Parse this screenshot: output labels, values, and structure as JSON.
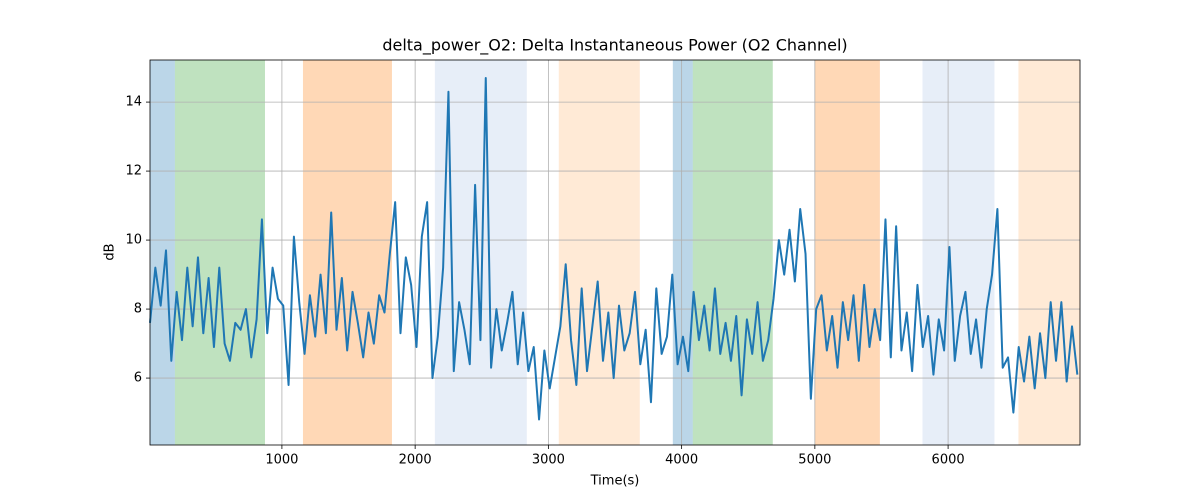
{
  "chart_data": {
    "type": "line",
    "title": "delta_power_O2: Delta Instantaneous Power (O2 Channel)",
    "x_label": "Time(s)",
    "y_label": "dB",
    "x": [
      10,
      50,
      90,
      130,
      170,
      210,
      250,
      290,
      330,
      370,
      410,
      450,
      490,
      530,
      570,
      610,
      650,
      690,
      730,
      770,
      810,
      850,
      890,
      930,
      970,
      1010,
      1050,
      1090,
      1130,
      1170,
      1210,
      1250,
      1290,
      1330,
      1370,
      1410,
      1450,
      1490,
      1530,
      1570,
      1610,
      1650,
      1690,
      1730,
      1770,
      1810,
      1850,
      1890,
      1930,
      1970,
      2010,
      2050,
      2090,
      2130,
      2170,
      2210,
      2250,
      2290,
      2330,
      2370,
      2410,
      2450,
      2490,
      2530,
      2570,
      2610,
      2650,
      2690,
      2730,
      2770,
      2810,
      2850,
      2890,
      2930,
      2970,
      3010,
      3050,
      3090,
      3130,
      3170,
      3210,
      3250,
      3290,
      3330,
      3370,
      3410,
      3450,
      3490,
      3530,
      3570,
      3610,
      3650,
      3690,
      3730,
      3770,
      3810,
      3850,
      3890,
      3930,
      3970,
      4010,
      4050,
      4090,
      4130,
      4170,
      4210,
      4250,
      4290,
      4330,
      4370,
      4410,
      4450,
      4490,
      4530,
      4570,
      4610,
      4650,
      4690,
      4730,
      4770,
      4810,
      4850,
      4890,
      4930,
      4970,
      5010,
      5050,
      5090,
      5130,
      5170,
      5210,
      5250,
      5290,
      5330,
      5370,
      5410,
      5450,
      5490,
      5530,
      5570,
      5610,
      5650,
      5690,
      5730,
      5770,
      5810,
      5850,
      5890,
      5930,
      5970,
      6010,
      6050,
      6090,
      6130,
      6170,
      6210,
      6250,
      6290,
      6330,
      6370,
      6410,
      6450,
      6490,
      6530,
      6570,
      6610,
      6650,
      6690,
      6730,
      6770,
      6810,
      6850,
      6890,
      6930,
      6970
    ],
    "values": [
      7.6,
      9.2,
      8.1,
      9.7,
      6.5,
      8.5,
      7.1,
      9.2,
      7.5,
      9.5,
      7.3,
      8.9,
      6.9,
      9.2,
      7.0,
      6.5,
      7.6,
      7.4,
      8.0,
      6.6,
      7.7,
      10.6,
      7.3,
      9.2,
      8.3,
      8.1,
      5.8,
      10.1,
      8.2,
      6.7,
      8.4,
      7.2,
      9.0,
      7.3,
      10.8,
      7.4,
      8.9,
      6.8,
      8.5,
      7.6,
      6.6,
      7.9,
      7.0,
      8.4,
      7.9,
      9.6,
      11.1,
      7.3,
      9.5,
      8.7,
      6.9,
      10.1,
      11.1,
      6.0,
      7.2,
      9.2,
      14.3,
      6.2,
      8.2,
      7.4,
      6.4,
      11.6,
      7.1,
      14.7,
      6.3,
      8.0,
      6.8,
      7.6,
      8.5,
      6.4,
      7.9,
      6.2,
      6.9,
      4.8,
      6.8,
      5.7,
      6.6,
      7.5,
      9.3,
      7.1,
      5.8,
      8.6,
      6.2,
      7.5,
      8.8,
      6.5,
      7.9,
      6.0,
      8.1,
      6.8,
      7.3,
      8.5,
      6.4,
      7.4,
      5.3,
      8.6,
      6.7,
      7.2,
      9.0,
      6.4,
      7.2,
      6.2,
      8.5,
      7.1,
      8.1,
      6.8,
      8.6,
      6.7,
      7.6,
      6.5,
      7.8,
      5.5,
      7.7,
      6.7,
      8.2,
      6.5,
      7.1,
      8.3,
      10.0,
      9.0,
      10.3,
      8.8,
      10.9,
      9.6,
      5.4,
      8.0,
      8.4,
      6.8,
      7.8,
      6.3,
      8.2,
      7.1,
      8.4,
      6.5,
      8.7,
      6.9,
      8.0,
      7.1,
      10.6,
      6.6,
      10.4,
      6.8,
      7.9,
      6.2,
      8.7,
      6.9,
      7.8,
      6.1,
      7.7,
      6.8,
      9.8,
      6.5,
      7.8,
      8.5,
      6.7,
      7.7,
      6.3,
      8.0,
      9.0,
      10.9,
      6.3,
      6.6,
      5.0,
      6.9,
      5.9,
      7.2,
      5.7,
      7.3,
      6.0,
      8.2,
      6.5,
      8.2,
      5.9,
      7.5,
      6.1
    ],
    "color": "#1f77b4",
    "spans": [
      {
        "start": 10,
        "end": 197,
        "color": "#1f77b4"
      },
      {
        "start": 197,
        "end": 873,
        "color": "#2ca02c"
      },
      {
        "start": 1158,
        "end": 1826,
        "color": "#ff7f0e"
      },
      {
        "start": 2148,
        "end": 2838,
        "color": "#aec7e8"
      },
      {
        "start": 3078,
        "end": 3686,
        "color": "#ffbb78"
      },
      {
        "start": 3934,
        "end": 4084,
        "color": "#1f77b4"
      },
      {
        "start": 4084,
        "end": 4684,
        "color": "#2ca02c"
      },
      {
        "start": 5000,
        "end": 5488,
        "color": "#ff7f0e"
      },
      {
        "start": 5808,
        "end": 6348,
        "color": "#aec7e8"
      },
      {
        "start": 6528,
        "end": 6990,
        "color": "#ffbb78"
      }
    ],
    "span_alpha": 0.3,
    "xlim": [
      10,
      6990
    ],
    "ylim": [
      4.06,
      15.22
    ],
    "xticks": [
      1000,
      2000,
      3000,
      4000,
      5000,
      6000
    ],
    "yticks": [
      6,
      8,
      10,
      12,
      14
    ],
    "grid": true
  }
}
